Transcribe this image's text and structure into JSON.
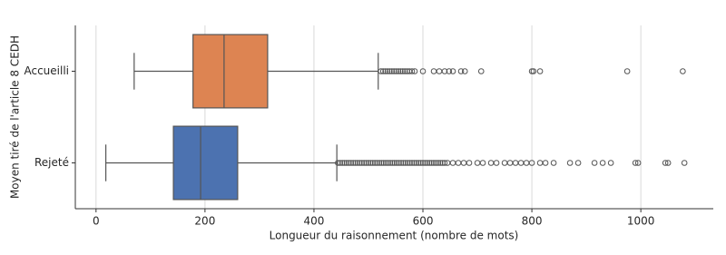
{
  "chart_data": {
    "type": "boxplot",
    "xlabel": "Longueur du raisonnement (nombre de mots)",
    "ylabel": "Moyen tiré de l'article 8 CEDH",
    "categories": [
      "Accueilli",
      "Rejeté"
    ],
    "boxes": [
      {
        "color": "#dd8452",
        "whislo": 70,
        "q1": 178,
        "med": 235,
        "q3": 315,
        "whishi": 518,
        "fliers": [
          523,
          527,
          531,
          535,
          539,
          543,
          547,
          551,
          555,
          559,
          563,
          567,
          571,
          575,
          580,
          585,
          600,
          620,
          630,
          640,
          648,
          655,
          670,
          677,
          707,
          800,
          803,
          815,
          975,
          1077
        ]
      },
      {
        "color": "#4c72b0",
        "whislo": 18,
        "q1": 142,
        "med": 192,
        "q3": 260,
        "whishi": 442,
        "fliers": [
          444,
          448,
          452,
          456,
          460,
          464,
          468,
          472,
          476,
          480,
          484,
          488,
          492,
          496,
          500,
          504,
          508,
          512,
          516,
          520,
          524,
          528,
          532,
          536,
          540,
          544,
          548,
          552,
          556,
          560,
          564,
          568,
          572,
          576,
          580,
          584,
          588,
          592,
          596,
          600,
          604,
          608,
          612,
          616,
          620,
          624,
          628,
          632,
          636,
          640,
          645,
          655,
          665,
          675,
          685,
          700,
          710,
          725,
          735,
          750,
          760,
          770,
          780,
          790,
          800,
          815,
          825,
          840,
          870,
          885,
          915,
          930,
          945,
          990,
          995,
          1045,
          1050,
          1080
        ]
      }
    ],
    "xlim": [
      -38,
      1133
    ],
    "xticks": [
      0,
      200,
      400,
      600,
      800,
      1000
    ],
    "grid": true
  }
}
